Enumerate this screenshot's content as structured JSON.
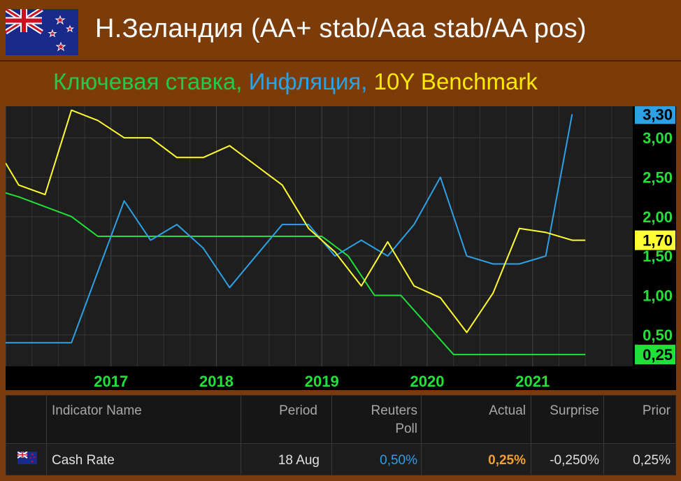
{
  "header": {
    "title": "Н.Зеландия (AA+ stab/Aaa stab/AA pos)",
    "subtitle_parts": [
      "Ключевая ставка, ",
      "Инфляция, ",
      "10Y Benchmark"
    ],
    "flag_icon": "new-zealand-flag"
  },
  "colors": {
    "rate": "#22e03a",
    "inflation": "#2ea0e6",
    "benchmark": "#ffff33",
    "background": "#7c3c0a"
  },
  "chart_data": {
    "type": "line",
    "x_ticks": [
      "2017",
      "2018",
      "2019",
      "2020",
      "2021"
    ],
    "y_ticks": [
      "0,50",
      "1,00",
      "1,50",
      "2,00",
      "2,50",
      "3,00"
    ],
    "ylim": [
      0.1,
      3.4
    ],
    "xlim": [
      2016.0,
      2021.95
    ],
    "grid": true,
    "series": [
      {
        "key": "rate",
        "x": [
          2016.0,
          2016.125,
          2016.625,
          2016.875,
          2019.0,
          2019.25,
          2019.5,
          2019.75,
          2020.25,
          2021.5
        ],
        "y": [
          2.3,
          2.25,
          2.0,
          1.75,
          1.75,
          1.5,
          1.0,
          1.0,
          0.25,
          0.25
        ],
        "last_label": "0,25"
      },
      {
        "key": "inflation",
        "x": [
          2016.0,
          2016.375,
          2016.625,
          2016.875,
          2017.125,
          2017.375,
          2017.625,
          2017.875,
          2018.125,
          2018.375,
          2018.625,
          2018.875,
          2019.125,
          2019.375,
          2019.625,
          2019.875,
          2020.125,
          2020.375,
          2020.625,
          2020.875,
          2021.125,
          2021.375
        ],
        "y": [
          0.4,
          0.4,
          0.4,
          1.3,
          2.2,
          1.7,
          1.9,
          1.6,
          1.1,
          1.5,
          1.9,
          1.9,
          1.5,
          1.7,
          1.5,
          1.9,
          2.5,
          1.5,
          1.4,
          1.4,
          1.5,
          3.3
        ],
        "last_label": "3,30"
      },
      {
        "key": "benchmark",
        "x": [
          2016.0,
          2016.125,
          2016.375,
          2016.625,
          2016.875,
          2017.125,
          2017.375,
          2017.625,
          2017.875,
          2018.125,
          2018.375,
          2018.625,
          2018.875,
          2019.125,
          2019.375,
          2019.625,
          2019.875,
          2020.125,
          2020.375,
          2020.625,
          2020.875,
          2021.125,
          2021.375,
          2021.5
        ],
        "y": [
          2.68,
          2.4,
          2.28,
          3.35,
          3.22,
          3.0,
          3.0,
          2.75,
          2.75,
          2.9,
          2.65,
          2.4,
          1.85,
          1.55,
          1.12,
          1.68,
          1.12,
          0.97,
          0.53,
          1.03,
          1.85,
          1.8,
          1.7,
          1.7
        ],
        "last_label": "1,70"
      }
    ]
  },
  "table": {
    "headers": {
      "name": "Indicator Name",
      "period": "Period",
      "poll_line1": "Reuters",
      "poll_line2": "Poll",
      "actual": "Actual",
      "surprise": "Surprise",
      "prior": "Prior"
    },
    "row": {
      "flag_icon": "new-zealand-flag",
      "name": "Cash Rate",
      "period": "18 Aug",
      "poll": "0,50%",
      "actual": "0,25%",
      "surprise": "-0,250%",
      "prior": "0,25%"
    },
    "colors": {
      "poll": "#2ea0e6",
      "actual": "#f0a030"
    }
  }
}
